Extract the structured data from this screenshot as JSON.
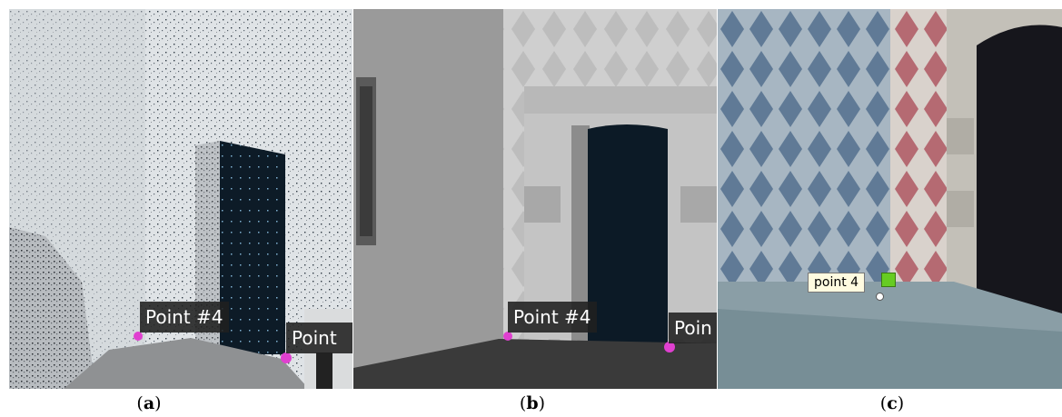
{
  "panels": [
    {
      "id": "a",
      "caption": "a",
      "labels": [
        "Point #4",
        "Point"
      ]
    },
    {
      "id": "b",
      "caption": "b",
      "labels": [
        "Point #4",
        "Poin"
      ]
    },
    {
      "id": "c",
      "caption": "c",
      "labels": [
        "point 4"
      ]
    }
  ],
  "colors": {
    "marker": "#e040d0",
    "door": "#0c1a26",
    "label_bg": "#202020",
    "flag": "#66cc22"
  }
}
